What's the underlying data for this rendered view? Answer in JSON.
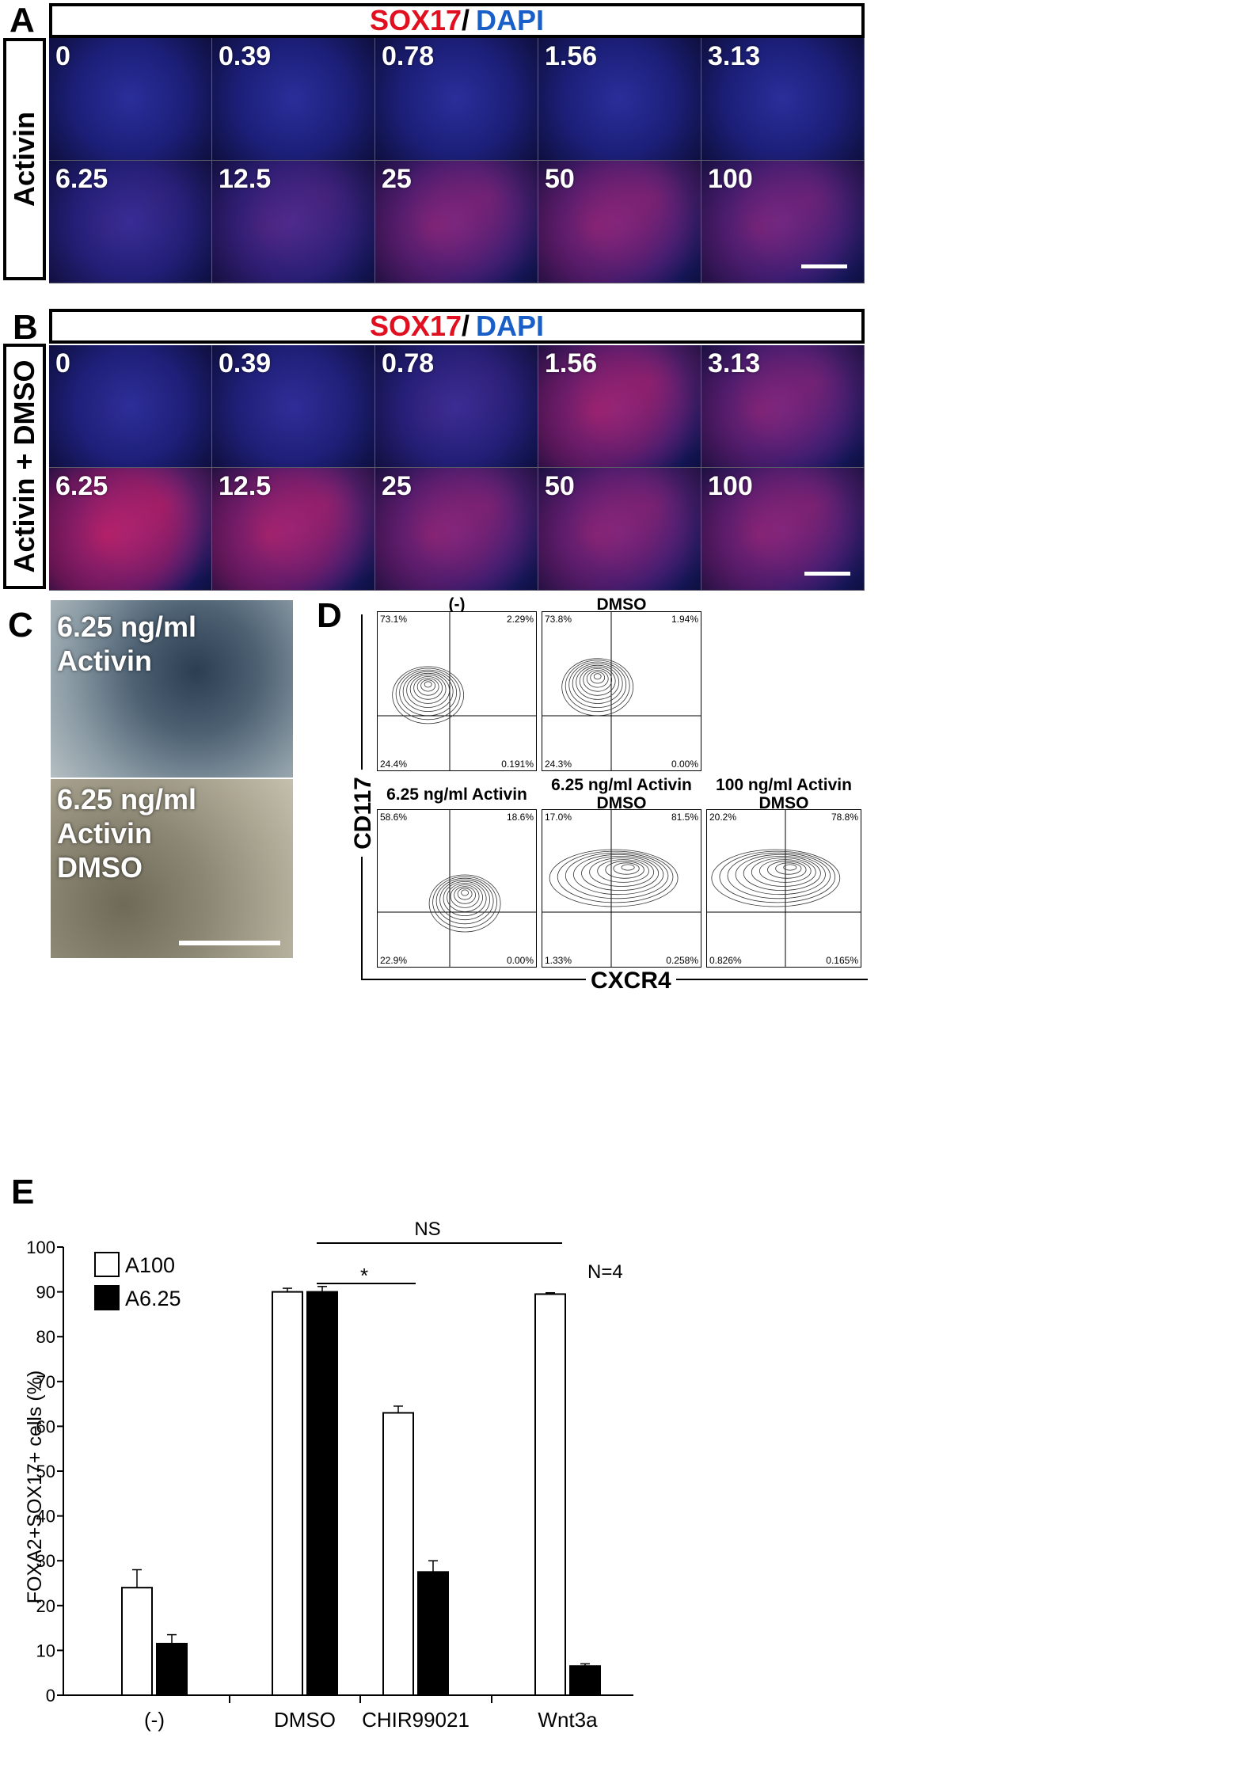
{
  "panel_letters": [
    "A",
    "B",
    "C",
    "D",
    "E"
  ],
  "panelA": {
    "header_sox17": "SOX17",
    "header_sep": "/",
    "header_dapi": "DAPI",
    "side_label": "Activin",
    "tiles": [
      "0",
      "0.39",
      "0.78",
      "1.56",
      "3.13",
      "6.25",
      "12.5",
      "25",
      "50",
      "100"
    ],
    "red_fraction": [
      0.0,
      0.0,
      0.0,
      0.0,
      0.0,
      0.08,
      0.2,
      0.45,
      0.5,
      0.4
    ]
  },
  "panelB": {
    "header_sox17": "SOX17",
    "header_sep": "/",
    "header_dapi": "DAPI",
    "side_label": "Activin + DMSO",
    "tiles": [
      "0",
      "0.39",
      "0.78",
      "1.56",
      "3.13",
      "6.25",
      "12.5",
      "25",
      "50",
      "100"
    ],
    "red_fraction": [
      0.02,
      0.03,
      0.1,
      0.6,
      0.45,
      0.75,
      0.65,
      0.5,
      0.5,
      0.5
    ]
  },
  "panelC": {
    "top_label": "6.25 ng/ml Activin",
    "bottom_label_line1": "6.25 ng/ml Activin",
    "bottom_label_line2": "DMSO"
  },
  "panelD": {
    "y_axis": "CD117",
    "x_axis": "CXCR4",
    "plots": [
      {
        "title_line1": "(-)",
        "title_line2": "",
        "ul": "73.1%",
        "ur": "2.29%",
        "ll": "24.4%",
        "lr": "0.191%"
      },
      {
        "title_line1": "DMSO",
        "title_line2": "",
        "ul": "73.8%",
        "ur": "1.94%",
        "ll": "24.3%",
        "lr": "0.00%"
      },
      {
        "title_line1": "6.25 ng/ml Activin",
        "title_line2": "",
        "ul": "58.6%",
        "ur": "18.6%",
        "ll": "22.9%",
        "lr": "0.00%"
      },
      {
        "title_line1": "6.25 ng/ml Activin",
        "title_line2": "DMSO",
        "ul": "17.0%",
        "ur": "81.5%",
        "ll": "1.33%",
        "lr": "0.258%"
      },
      {
        "title_line1": "100 ng/ml Activin",
        "title_line2": "DMSO",
        "ul": "20.2%",
        "ur": "78.8%",
        "ll": "0.826%",
        "lr": "0.165%"
      }
    ]
  },
  "chart_data": {
    "type": "bar",
    "categories": [
      "(-)",
      "DMSO",
      "CHIR99021",
      "Wnt3a"
    ],
    "series": [
      {
        "name": "A100",
        "values": [
          24,
          90,
          63,
          89.5
        ],
        "errors": [
          4,
          0.8,
          1.5,
          0.3
        ],
        "color": "#ffffff"
      },
      {
        "name": "A6.25",
        "values": [
          11.5,
          90,
          27.5,
          6.5
        ],
        "errors": [
          2,
          1.2,
          2.5,
          0.5
        ],
        "color": "#000000"
      }
    ],
    "title": "",
    "xlabel": "",
    "ylabel": "FOXA2+SOX17+ cells (%)",
    "ylim": [
      0,
      100
    ],
    "yticks": [
      "0",
      "10",
      "20",
      "30",
      "40",
      "50",
      "60",
      "70",
      "80",
      "90",
      "100"
    ],
    "annotations": {
      "sig_star": "*",
      "sig_ns": "NS",
      "n_label": "N=4"
    }
  }
}
